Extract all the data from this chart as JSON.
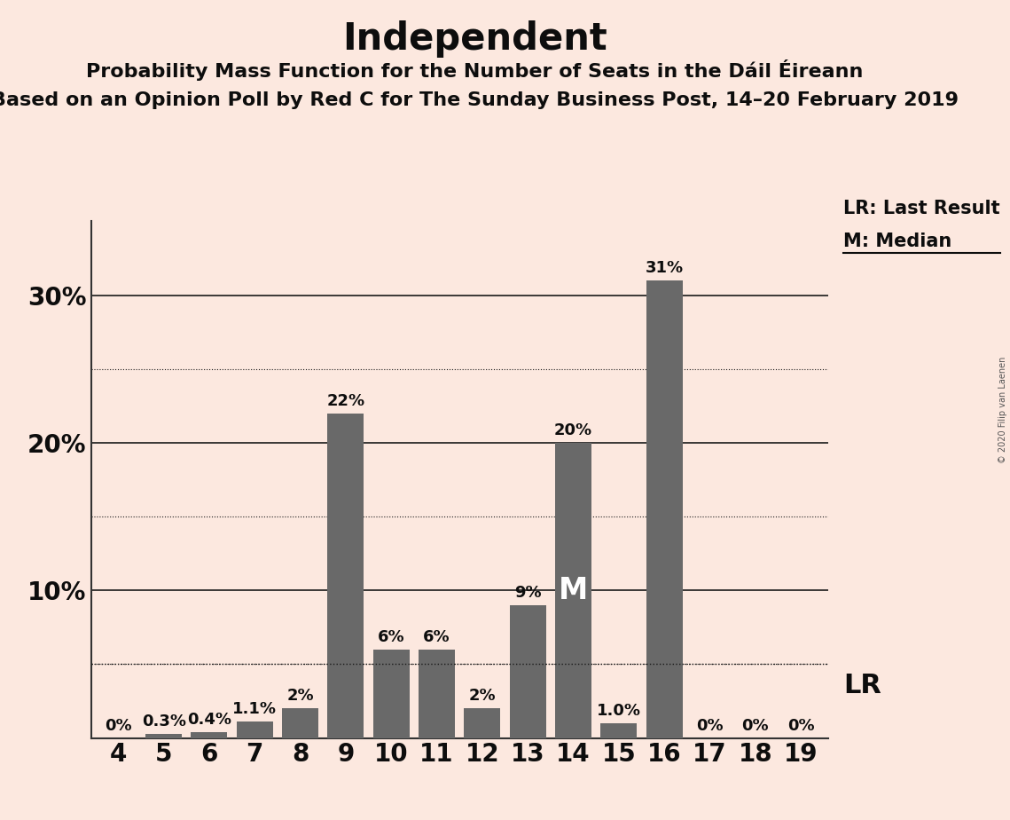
{
  "title": "Independent",
  "subtitle1": "Probability Mass Function for the Number of Seats in the Dáil Éireann",
  "subtitle2": "Based on an Opinion Poll by Red C for The Sunday Business Post, 14–20 February 2019",
  "copyright": "© 2020 Filip van Laenen",
  "categories": [
    4,
    5,
    6,
    7,
    8,
    9,
    10,
    11,
    12,
    13,
    14,
    15,
    16,
    17,
    18,
    19
  ],
  "values": [
    0.0,
    0.3,
    0.4,
    1.1,
    2.0,
    22.0,
    6.0,
    6.0,
    2.0,
    9.0,
    20.0,
    1.0,
    31.0,
    0.0,
    0.0,
    0.0
  ],
  "labels": [
    "0%",
    "0.3%",
    "0.4%",
    "1.1%",
    "2%",
    "22%",
    "6%",
    "6%",
    "2%",
    "9%",
    "20%",
    "1.0%",
    "31%",
    "0%",
    "0%",
    "0%"
  ],
  "bar_color": "#696969",
  "background_color": "#fce8df",
  "title_color": "#0d0d0d",
  "ylim": [
    0,
    35
  ],
  "major_gridlines": [
    10,
    20,
    30
  ],
  "minor_gridlines": [
    5,
    15,
    25
  ],
  "lr_value": 5.0,
  "median_seat": 14,
  "legend_lr": "LR: Last Result",
  "legend_m": "M: Median",
  "title_fontsize": 30,
  "subtitle_fontsize": 16,
  "label_fontsize": 13,
  "tick_fontsize": 20
}
